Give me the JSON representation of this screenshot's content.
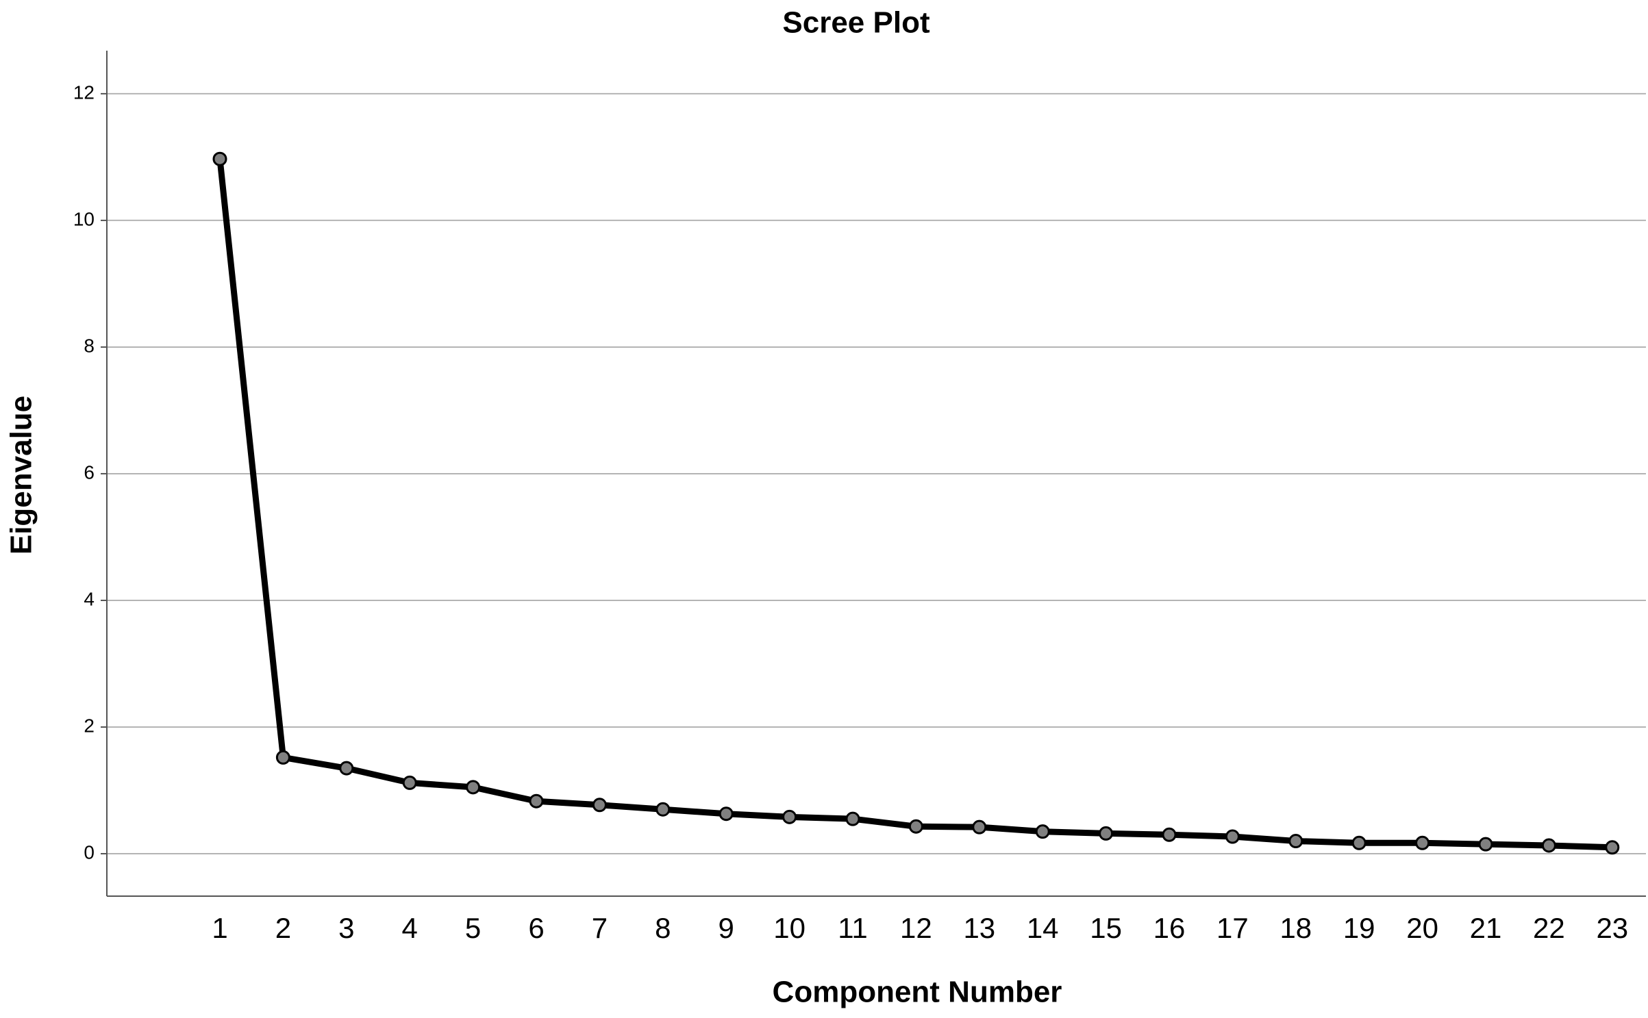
{
  "chart_data": {
    "type": "line",
    "title": "Scree Plot",
    "x_label": "Component Number",
    "y_label": "Eigenvalue",
    "categories": [
      "1",
      "2",
      "3",
      "4",
      "5",
      "6",
      "7",
      "8",
      "9",
      "10",
      "11",
      "12",
      "13",
      "14",
      "15",
      "16",
      "17",
      "18",
      "19",
      "20",
      "21",
      "22",
      "23"
    ],
    "values": [
      10.97,
      1.52,
      1.35,
      1.12,
      1.05,
      0.83,
      0.77,
      0.7,
      0.63,
      0.58,
      0.55,
      0.43,
      0.42,
      0.35,
      0.32,
      0.3,
      0.27,
      0.2,
      0.17,
      0.17,
      0.15,
      0.13,
      0.1
    ],
    "color": "#000000",
    "marker_color": "#808080",
    "ylim": [
      -0.67,
      12.68
    ],
    "yticks": [
      0,
      2,
      4,
      6,
      8,
      10,
      12
    ],
    "grid": true
  }
}
